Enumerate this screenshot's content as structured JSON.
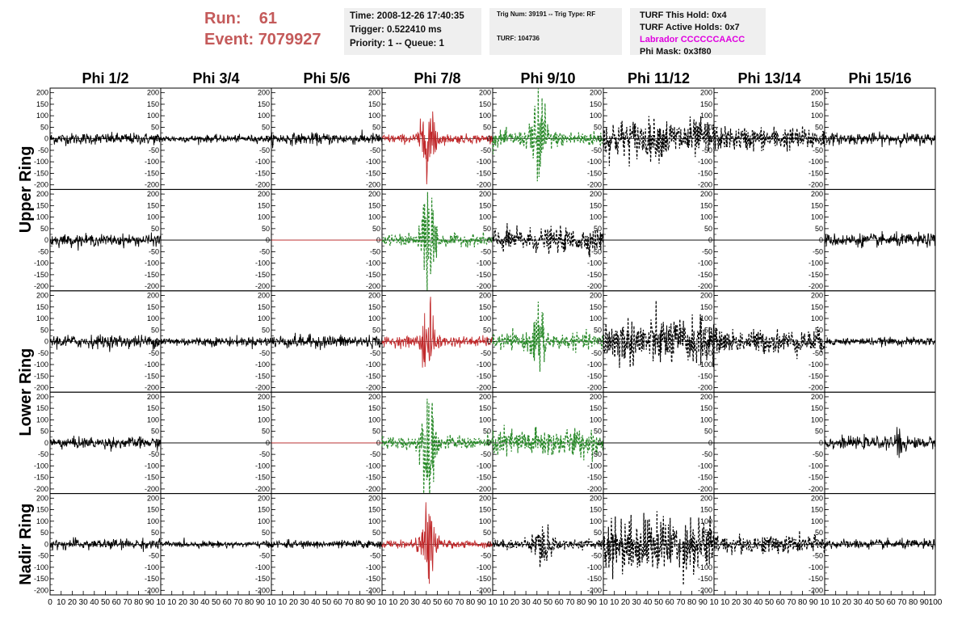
{
  "header": {
    "run_label": "Run:",
    "run_value": "61",
    "event_label": "Event:",
    "event_value": "7079927"
  },
  "info_box_1": {
    "time": "Time: 2008-12-26 17:40:35",
    "trigger": "Trigger: 0.522410 ms",
    "priority": "Priority: 1 -- Queue: 1"
  },
  "info_box_2": {
    "trig": "Trig Num: 39191 -- Trig Type: RF",
    "turf": "TURF: 104736"
  },
  "info_box_3": {
    "this_hold": "TURF This Hold: 0x4",
    "active_holds": "TURF Active Holds: 0x7",
    "labrador": "Labrador CCCCCCAACC",
    "phi_mask": "Phi Mask: 0x3f80"
  },
  "colors": {
    "header_red": "#c45a5a",
    "trace_black": "#000000",
    "trace_red": "#c0282a",
    "trace_green": "#2a8a2a",
    "labrador_magenta": "#e000e0",
    "box_bg": "#efefef"
  },
  "chart_data": {
    "type": "line",
    "columns": [
      "Phi 1/2",
      "Phi 3/4",
      "Phi 5/6",
      "Phi 7/8",
      "Phi 9/10",
      "Phi 11/12",
      "Phi 13/14",
      "Phi 15/16"
    ],
    "row_groups": [
      {
        "label": "Upper Ring",
        "rows": [
          0,
          1
        ]
      },
      {
        "label": "Lower Ring",
        "rows": [
          2,
          3
        ]
      },
      {
        "label": "Nadir Ring",
        "rows": [
          4
        ]
      }
    ],
    "ylim": [
      -220,
      220
    ],
    "yticks": [
      -200,
      -150,
      -100,
      -50,
      0,
      50,
      100,
      150,
      200
    ],
    "xlim": [
      0,
      100
    ],
    "xticks": [
      0,
      10,
      20,
      30,
      40,
      50,
      60,
      70,
      80,
      90
    ],
    "xtick_text": [
      "0",
      "10",
      "20",
      "30",
      "40",
      "50",
      "60",
      "70",
      "80",
      "90",
      "10",
      "10",
      "20",
      "30",
      "40",
      "50",
      "60",
      "70",
      "80",
      "90",
      "10",
      "10",
      "20",
      "30",
      "40",
      "50",
      "60",
      "70",
      "80",
      "90",
      "10",
      "10",
      "20",
      "30",
      "40",
      "50",
      "60",
      "70",
      "80",
      "90",
      "10",
      "10",
      "20",
      "30",
      "40",
      "50",
      "60",
      "70",
      "80",
      "90",
      "10",
      "10",
      "20",
      "30",
      "40",
      "50",
      "60",
      "70",
      "80",
      "90",
      "10",
      "10",
      "20",
      "30",
      "40",
      "50",
      "60",
      "70",
      "80",
      "90",
      "10",
      "10",
      "20",
      "30",
      "40",
      "50",
      "60",
      "70",
      "80",
      "90",
      "100"
    ],
    "panels": [
      [
        {
          "color": "black",
          "style": "solid",
          "amp": 22,
          "burst": null
        },
        {
          "color": "black",
          "style": "solid",
          "amp": 14,
          "burst": null
        },
        {
          "color": "black",
          "style": "solid",
          "amp": 22,
          "burst": null
        },
        {
          "color": "red",
          "style": "solid",
          "amp": 18,
          "burst": {
            "center": 42,
            "width": 7,
            "amp": 100
          }
        },
        {
          "color": "green",
          "style": "dashed",
          "amp": 30,
          "burst": {
            "center": 42,
            "width": 6,
            "amp": 190
          }
        },
        {
          "color": "black",
          "style": "dashed",
          "amp": 75,
          "burst": null
        },
        {
          "color": "black",
          "style": "dashed",
          "amp": 45,
          "burst": null
        },
        {
          "color": "black",
          "style": "solid",
          "amp": 22,
          "burst": null
        }
      ],
      [
        {
          "color": "black",
          "style": "solid",
          "amp": 22,
          "burst": null
        },
        {
          "color": "black",
          "style": "flat",
          "amp": 0,
          "burst": null
        },
        {
          "color": "red",
          "style": "flat",
          "amp": 0,
          "burst": null
        },
        {
          "color": "green",
          "style": "dashed",
          "amp": 22,
          "burst": {
            "center": 42,
            "width": 6,
            "amp": 210
          }
        },
        {
          "color": "black",
          "style": "dashed",
          "amp": 45,
          "burst": null
        },
        {
          "color": "black",
          "style": "flat",
          "amp": 0,
          "burst": null
        },
        {
          "color": "black",
          "style": "flat",
          "amp": 0,
          "burst": null
        },
        {
          "color": "black",
          "style": "solid",
          "amp": 25,
          "burst": null
        }
      ],
      [
        {
          "color": "black",
          "style": "solid",
          "amp": 25,
          "burst": null
        },
        {
          "color": "black",
          "style": "solid",
          "amp": 18,
          "burst": null
        },
        {
          "color": "black",
          "style": "solid",
          "amp": 25,
          "burst": null
        },
        {
          "color": "red",
          "style": "solid",
          "amp": 20,
          "burst": {
            "center": 42,
            "width": 7,
            "amp": 110
          }
        },
        {
          "color": "green",
          "style": "dashed",
          "amp": 30,
          "burst": {
            "center": 42,
            "width": 6,
            "amp": 110
          }
        },
        {
          "color": "black",
          "style": "dashed",
          "amp": 90,
          "burst": null
        },
        {
          "color": "black",
          "style": "dashed",
          "amp": 45,
          "burst": null
        },
        {
          "color": "black",
          "style": "solid",
          "amp": 15,
          "burst": null
        }
      ],
      [
        {
          "color": "black",
          "style": "solid",
          "amp": 22,
          "burst": null
        },
        {
          "color": "black",
          "style": "flat",
          "amp": 0,
          "burst": null
        },
        {
          "color": "red",
          "style": "flat",
          "amp": 0,
          "burst": null
        },
        {
          "color": "green",
          "style": "dashed",
          "amp": 25,
          "burst": {
            "center": 42,
            "width": 6,
            "amp": 200
          }
        },
        {
          "color": "green",
          "style": "dashed",
          "amp": 55,
          "burst": null
        },
        {
          "color": "black",
          "style": "flat",
          "amp": 0,
          "burst": null
        },
        {
          "color": "black",
          "style": "flat",
          "amp": 0,
          "burst": null
        },
        {
          "color": "black",
          "style": "solid",
          "amp": 22,
          "burst": {
            "center": 68,
            "width": 4,
            "amp": 45
          }
        }
      ],
      [
        {
          "color": "black",
          "style": "solid",
          "amp": 20,
          "burst": null
        },
        {
          "color": "black",
          "style": "solid",
          "amp": 12,
          "burst": null
        },
        {
          "color": "black",
          "style": "solid",
          "amp": 15,
          "burst": null
        },
        {
          "color": "red",
          "style": "solid",
          "amp": 15,
          "burst": {
            "center": 42,
            "width": 7,
            "amp": 110
          }
        },
        {
          "color": "black",
          "style": "dashed",
          "amp": 18,
          "burst": {
            "center": 45,
            "width": 10,
            "amp": 60
          }
        },
        {
          "color": "black",
          "style": "dashed",
          "amp": 110,
          "burst": null
        },
        {
          "color": "black",
          "style": "dashed",
          "amp": 35,
          "burst": null
        },
        {
          "color": "black",
          "style": "solid",
          "amp": 18,
          "burst": null
        }
      ]
    ]
  }
}
